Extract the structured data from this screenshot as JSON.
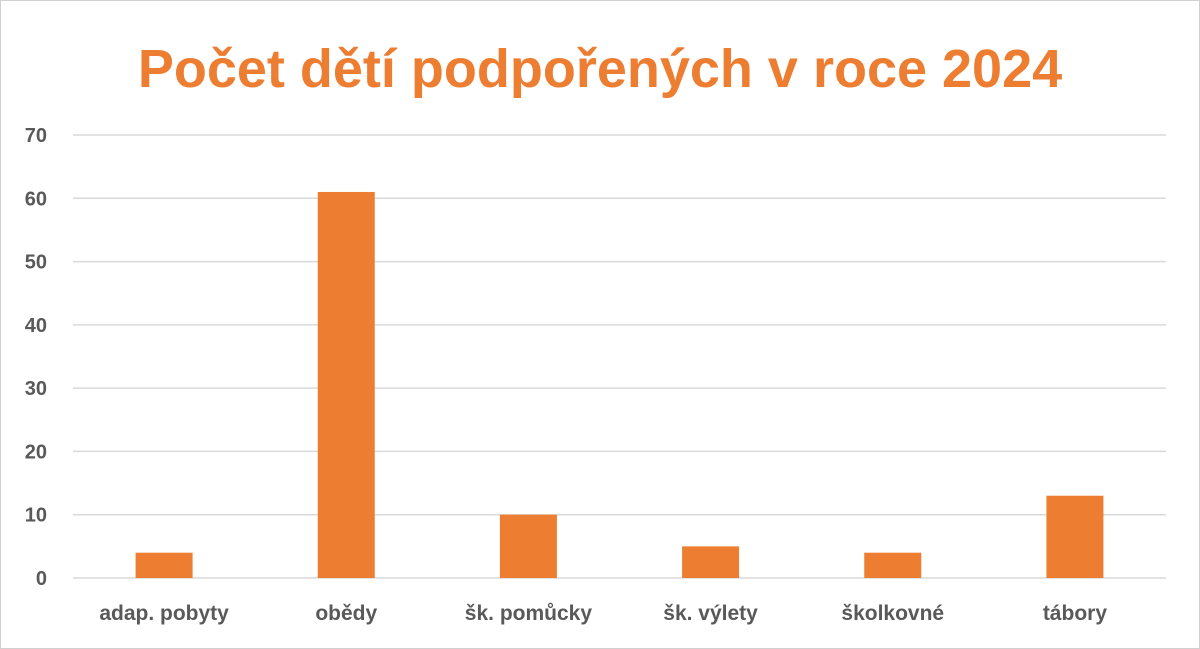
{
  "chart_data": {
    "type": "bar",
    "title": "Počet dětí podpořených v roce 2024",
    "categories": [
      "adap. pobyty",
      "obědy",
      "šk. pomůcky",
      "šk. výlety",
      "školkovné",
      "tábory"
    ],
    "values": [
      4,
      61,
      10,
      5,
      4,
      13
    ],
    "xlabel": "",
    "ylabel": "",
    "ylim": [
      0,
      70
    ],
    "yticks": [
      0,
      10,
      20,
      30,
      40,
      50,
      60,
      70
    ],
    "grid": true,
    "legend": "none",
    "bar_color": "#ed7d31",
    "title_color": "#ed7d31"
  }
}
